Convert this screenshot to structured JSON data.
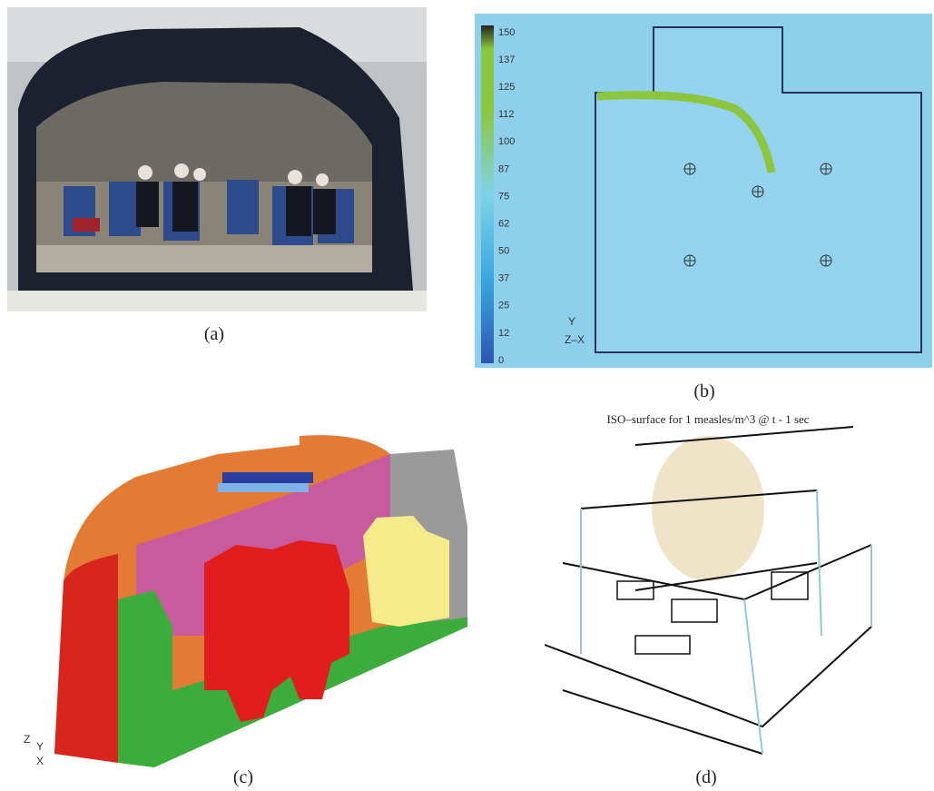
{
  "panels": [
    {
      "label": "(a)"
    },
    {
      "label": "(b)",
      "colorbar": [
        150,
        137,
        125,
        112,
        100,
        87,
        75,
        62,
        50,
        37,
        25,
        12,
        0
      ],
      "axis_y": "Y",
      "axis_zx": "Z–X"
    },
    {
      "label": "(c)",
      "axis_z": "Z",
      "axis_y": "Y",
      "axis_x": "X"
    },
    {
      "label": "(d)",
      "title": "ISO–surface for 1 measles/m^3 @ t - 1 sec"
    }
  ]
}
